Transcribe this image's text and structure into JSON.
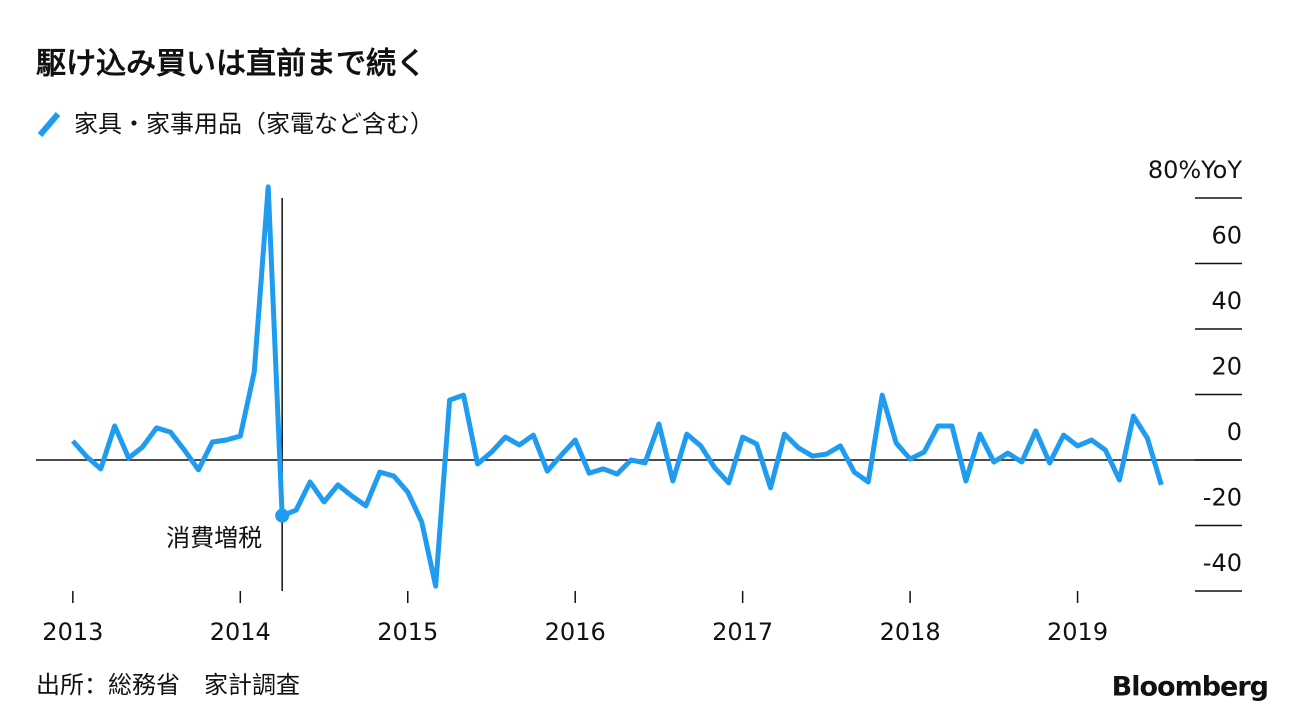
{
  "chart_data": {
    "type": "line",
    "title": "駆け込み買いは直前まで続く",
    "source": "出所：総務省　家計調査",
    "logo": "Bloomberg",
    "x": [
      2013,
      2013.0833,
      2013.1667,
      2013.25,
      2013.3333,
      2013.4167,
      2013.5,
      2013.5833,
      2013.6667,
      2013.75,
      2013.8333,
      2013.9167,
      2014,
      2014.0833,
      2014.1667,
      2014.25,
      2014.3333,
      2014.4167,
      2014.5,
      2014.5833,
      2014.6667,
      2014.75,
      2014.8333,
      2014.9167,
      2015,
      2015.0833,
      2015.1667,
      2015.25,
      2015.3333,
      2015.4167,
      2015.5,
      2015.5833,
      2015.6667,
      2015.75,
      2015.8333,
      2015.9167,
      2016,
      2016.0833,
      2016.1667,
      2016.25,
      2016.3333,
      2016.4167,
      2016.5,
      2016.5833,
      2016.6667,
      2016.75,
      2016.8333,
      2016.9167,
      2017,
      2017.0833,
      2017.1667,
      2017.25,
      2017.3333,
      2017.4167,
      2017.5,
      2017.5833,
      2017.6667,
      2017.75,
      2017.8333,
      2017.9167,
      2018,
      2018.0833,
      2018.1667,
      2018.25,
      2018.3333,
      2018.4167,
      2018.5,
      2018.5833,
      2018.6667,
      2018.75,
      2018.8333,
      2018.9167,
      2019,
      2019.0833,
      2019.1667,
      2019.25,
      2019.3333,
      2019.4167,
      2019.5
    ],
    "series": [
      {
        "name": "家具・家事用品（家電など含む）",
        "color": "#1f9cf0",
        "values": [
          5.8,
          1,
          -2.7,
          10.4,
          0.6,
          4,
          9.8,
          8.5,
          3,
          -3,
          5.5,
          6.1,
          7.3,
          26.9,
          83.4,
          -17,
          -15.3,
          -6.7,
          -12.8,
          -7.6,
          -11,
          -14,
          -3.7,
          -4.9,
          -9.8,
          -18.9,
          -38.5,
          18.3,
          19.8,
          -1.2,
          2.4,
          7,
          4.6,
          7.6,
          -3.4,
          1.5,
          6.1,
          -4,
          -2.7,
          -4.3,
          0,
          -0.9,
          11,
          -6.4,
          7.9,
          4.3,
          -2.4,
          -7,
          7,
          4.9,
          -8.5,
          7.9,
          3.7,
          1.2,
          1.8,
          4.3,
          -3.7,
          -6.7,
          19.8,
          5.2,
          0.3,
          2.4,
          10.4,
          10.4,
          -6.4,
          7.9,
          -0.6,
          2.1,
          -0.6,
          8.9,
          -0.9,
          7.6,
          4.3,
          6.1,
          3,
          -6.1,
          13.4,
          6.7,
          -7.6
        ]
      }
    ],
    "annotations": [
      {
        "text": "消費増税",
        "x": 2014.25,
        "point": 15
      }
    ],
    "xlim": [
      2012.78,
      2019.97
    ],
    "xticks": [
      2013,
      2014,
      2015,
      2016,
      2017,
      2018,
      2019
    ],
    "ylim": [
      -40,
      84
    ],
    "yticks": [
      -40,
      -20,
      0,
      20,
      40,
      60,
      {
        "value": 80,
        "label": "80%YoY"
      }
    ],
    "y_axis_side": "right"
  }
}
